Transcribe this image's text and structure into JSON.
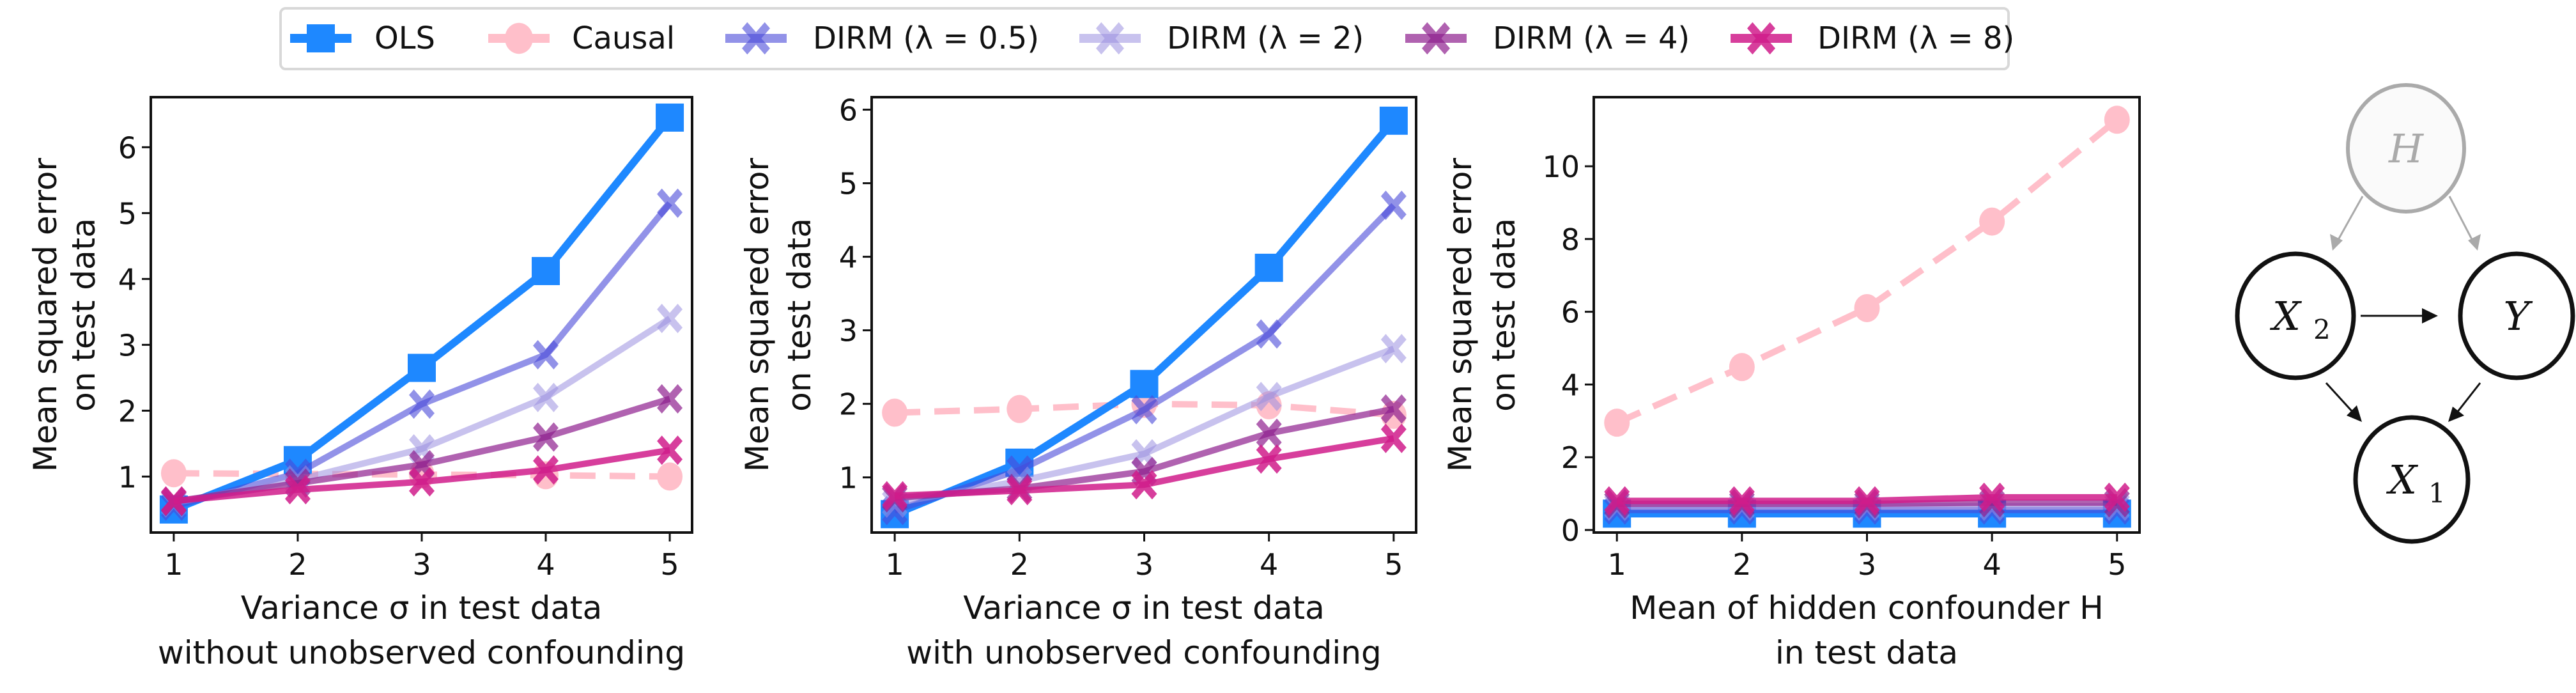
{
  "legend": {
    "items": [
      {
        "label": "OLS",
        "color": "#1e88ff",
        "marker": "square",
        "dash": false,
        "opacity": 1
      },
      {
        "label": "Causal",
        "color": "#ffbfca",
        "marker": "circle",
        "dash": true,
        "opacity": 1
      },
      {
        "label": "DIRM (λ = 0.5)",
        "color": "#4a4ad8",
        "marker": "x",
        "dash": false,
        "opacity": 0.6
      },
      {
        "label": "DIRM (λ = 2)",
        "color": "#9a90e0",
        "marker": "x",
        "dash": false,
        "opacity": 0.55
      },
      {
        "label": "DIRM (λ = 4)",
        "color": "#8e1f8e",
        "marker": "x",
        "dash": false,
        "opacity": 0.7
      },
      {
        "label": "DIRM (λ = 8)",
        "color": "#d01c8b",
        "marker": "x",
        "dash": false,
        "opacity": 0.85
      }
    ]
  },
  "chart_data": [
    {
      "type": "line",
      "ylabel": [
        "Mean squared error",
        "on test data"
      ],
      "xlabel": [
        "Variance σ in test data",
        "without unobserved confounding"
      ],
      "x": [
        1,
        2,
        3,
        4,
        5
      ],
      "xticks": [
        "1",
        "2",
        "3",
        "4",
        "5"
      ],
      "yticks": [
        1,
        2,
        3,
        4,
        5,
        6
      ],
      "ytick_labels": [
        "1",
        "2",
        "3",
        "4",
        "5",
        "6"
      ],
      "xlim": [
        0.815,
        5.18
      ],
      "ylim": [
        0.15,
        6.76
      ],
      "series": [
        {
          "name": "OLS",
          "values": [
            0.5,
            1.25,
            2.65,
            4.12,
            6.45
          ]
        },
        {
          "name": "Causal",
          "values": [
            1.05,
            1.04,
            1.03,
            1.02,
            1.0
          ]
        },
        {
          "name": "DIRM (λ = 0.5)",
          "values": [
            0.55,
            1.05,
            2.1,
            2.85,
            5.15
          ]
        },
        {
          "name": "DIRM (λ = 2)",
          "values": [
            0.6,
            0.95,
            1.42,
            2.2,
            3.4
          ]
        },
        {
          "name": "DIRM (λ = 4)",
          "values": [
            0.62,
            0.9,
            1.18,
            1.6,
            2.18
          ]
        },
        {
          "name": "DIRM (λ = 8)",
          "values": [
            0.63,
            0.8,
            0.92,
            1.1,
            1.4
          ]
        }
      ]
    },
    {
      "type": "line",
      "ylabel": [
        "Mean squared error",
        "on test data"
      ],
      "xlabel": [
        "Variance σ in test data",
        "with unobserved confounding"
      ],
      "x": [
        1,
        2,
        3,
        4,
        5
      ],
      "xticks": [
        "1",
        "2",
        "3",
        "4",
        "5"
      ],
      "yticks": [
        1,
        2,
        3,
        4,
        5,
        6
      ],
      "ytick_labels": [
        "1",
        "2",
        "3",
        "4",
        "5",
        "6"
      ],
      "xlim": [
        0.815,
        5.18
      ],
      "ylim": [
        0.25,
        6.17
      ],
      "series": [
        {
          "name": "OLS",
          "values": [
            0.5,
            1.2,
            2.27,
            3.85,
            5.85
          ]
        },
        {
          "name": "Causal",
          "values": [
            1.88,
            1.93,
            2.0,
            1.98,
            1.85
          ]
        },
        {
          "name": "DIRM (λ = 0.5)",
          "values": [
            0.55,
            1.1,
            1.92,
            2.95,
            4.7
          ]
        },
        {
          "name": "DIRM (λ = 2)",
          "values": [
            0.65,
            0.95,
            1.32,
            2.1,
            2.75
          ]
        },
        {
          "name": "DIRM (λ = 4)",
          "values": [
            0.72,
            0.85,
            1.08,
            1.6,
            1.93
          ]
        },
        {
          "name": "DIRM (λ = 8)",
          "values": [
            0.75,
            0.82,
            0.9,
            1.25,
            1.53
          ]
        }
      ]
    },
    {
      "type": "line",
      "ylabel": [
        "Mean squared error",
        "on test data"
      ],
      "xlabel": [
        "Mean of hidden confounder H",
        "in test data"
      ],
      "x": [
        1,
        2,
        3,
        4,
        5
      ],
      "xticks": [
        "1",
        "2",
        "3",
        "4",
        "5"
      ],
      "yticks": [
        0,
        2,
        4,
        6,
        8,
        10
      ],
      "ytick_labels": [
        "0",
        "2",
        "4",
        "6",
        "8",
        "10"
      ],
      "xlim": [
        0.815,
        5.18
      ],
      "ylim": [
        -0.07,
        11.9
      ],
      "series": [
        {
          "name": "OLS",
          "values": [
            0.45,
            0.45,
            0.45,
            0.45,
            0.45
          ]
        },
        {
          "name": "Causal",
          "values": [
            2.95,
            4.48,
            6.1,
            8.48,
            11.28
          ]
        },
        {
          "name": "DIRM (λ = 0.5)",
          "values": [
            0.55,
            0.55,
            0.55,
            0.55,
            0.55
          ]
        },
        {
          "name": "DIRM (λ = 2)",
          "values": [
            0.65,
            0.65,
            0.65,
            0.65,
            0.65
          ]
        },
        {
          "name": "DIRM (λ = 4)",
          "values": [
            0.72,
            0.72,
            0.72,
            0.75,
            0.75
          ]
        },
        {
          "name": "DIRM (λ = 8)",
          "values": [
            0.8,
            0.8,
            0.8,
            0.9,
            0.9
          ]
        }
      ]
    }
  ],
  "diagram": {
    "nodes": {
      "H": "H",
      "X2": "X",
      "X2_sub": "2",
      "Y": "Y",
      "X1": "X",
      "X1_sub": "1"
    },
    "hidden_color": "#aaaaaa"
  }
}
